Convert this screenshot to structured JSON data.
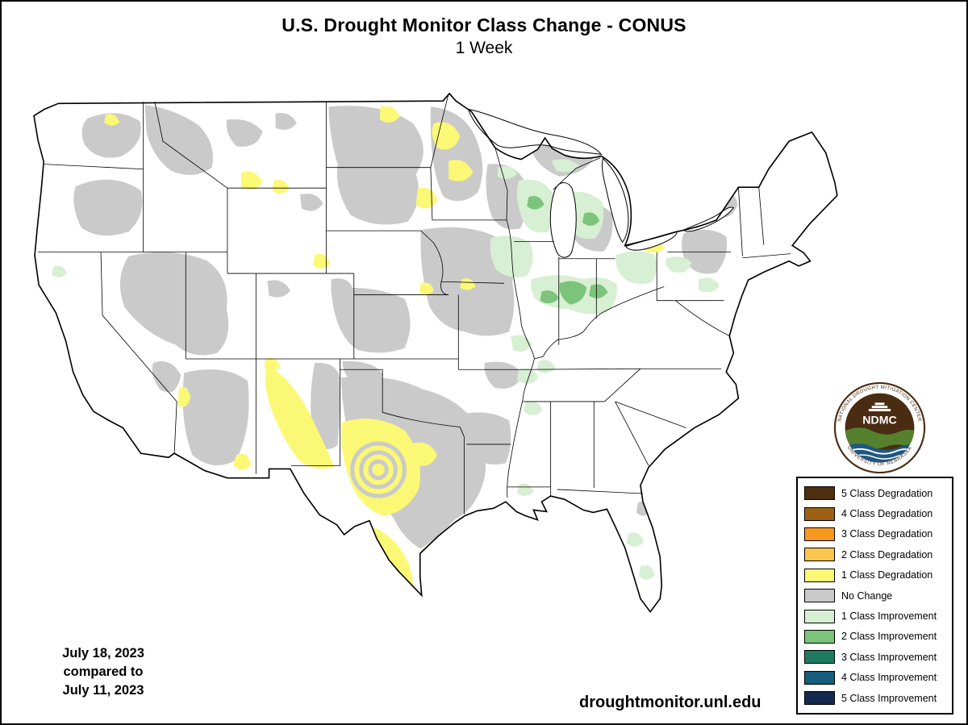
{
  "header": {
    "title": "U.S. Drought Monitor Class Change - CONUS",
    "subtitle": "1 Week"
  },
  "footer": {
    "url": "droughtmonitor.unl.edu",
    "date_current": "July 18, 2023",
    "date_compare_label": "compared to",
    "date_previous": "July 11, 2023"
  },
  "logo": {
    "arc_top": "NATIONAL DROUGHT MITIGATION CENTER",
    "arc_bottom": "UNIVERSITY OF NEBRASKA",
    "center_text": "NDMC",
    "colors": {
      "border": "#4a2c12",
      "disc": "#4a2c12",
      "wave_green": "#55812f",
      "wave_blue": "#1f5880",
      "text": "#4a2c12"
    }
  },
  "legend": {
    "items": [
      {
        "key": "deg5",
        "label": "5 Class Degradation",
        "color": "#4e2f10"
      },
      {
        "key": "deg4",
        "label": "4 Class Degradation",
        "color": "#9c6114"
      },
      {
        "key": "deg3",
        "label": "3 Class Degradation",
        "color": "#f8991f"
      },
      {
        "key": "deg2",
        "label": "2 Class Degradation",
        "color": "#fcc64e"
      },
      {
        "key": "deg1",
        "label": "1 Class Degradation",
        "color": "#fbf876"
      },
      {
        "key": "nochange",
        "label": "No Change",
        "color": "#cacaca"
      },
      {
        "key": "imp1",
        "label": "1 Class Improvement",
        "color": "#d7efd2"
      },
      {
        "key": "imp2",
        "label": "2 Class Improvement",
        "color": "#7cc47c"
      },
      {
        "key": "imp3",
        "label": "3 Class Improvement",
        "color": "#1e7b60"
      },
      {
        "key": "imp4",
        "label": "4 Class Improvement",
        "color": "#155d7b"
      },
      {
        "key": "imp5",
        "label": "5 Class Improvement",
        "color": "#14294e"
      }
    ]
  },
  "map": {
    "region": "CONUS",
    "land_color": "#ffffff",
    "border_color": "#000000",
    "categories_shown": [
      "1 Class Degradation",
      "No Change",
      "1 Class Improvement",
      "2 Class Improvement"
    ]
  }
}
